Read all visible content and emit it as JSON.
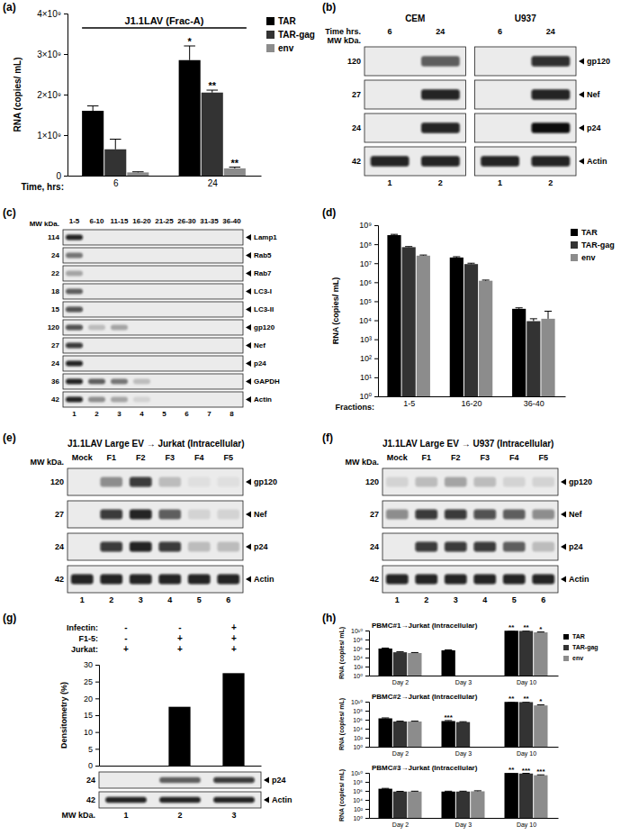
{
  "panel_labels": [
    "(a)",
    "(b)",
    "(c)",
    "(d)",
    "(e)",
    "(f)",
    "(g)",
    "(h)"
  ],
  "chart_data": [
    {
      "type": "bar",
      "title": "J1.1LAV (Frac-A)",
      "y_label": "RNA (copies/ mL)",
      "x_label": "Time, hrs:",
      "categories": [
        "6",
        "24"
      ],
      "series": [
        {
          "name": "TAR",
          "color": "#000000",
          "values": [
            1600000000,
            2850000000
          ],
          "errors": [
            120000000,
            350000000
          ]
        },
        {
          "name": "TAR-gag",
          "color": "#333333",
          "values": [
            650000000,
            2050000000
          ],
          "errors": [
            250000000,
            60000000
          ]
        },
        {
          "name": "env",
          "color": "#8c8c8c",
          "values": [
            80000000,
            180000000
          ],
          "errors": [
            15000000,
            30000000
          ]
        }
      ],
      "ylim": [
        0,
        4000000000
      ],
      "yticks": [
        0,
        {
          "value": 1000000000,
          "label": "1×10⁹"
        },
        {
          "value": 2000000000,
          "label": "2×10⁹"
        },
        {
          "value": 3000000000,
          "label": "3×10⁹"
        },
        {
          "value": 4000000000,
          "label": "4×10⁹"
        }
      ],
      "legend": "top-right",
      "annotations": [
        {
          "text": "*",
          "category": 1,
          "series": 0
        },
        {
          "text": "**",
          "category": 1,
          "series": 1
        },
        {
          "text": "**",
          "category": 1,
          "series": 2
        }
      ]
    },
    {
      "type": "bar",
      "log": "y",
      "y_label": "RNA (copies/ mL)",
      "x_label": "Fractions:",
      "categories": [
        "1-5",
        "16-20",
        "36-40"
      ],
      "series": [
        {
          "name": "TAR",
          "color": "#000000",
          "values": [
            300000000,
            20000000,
            40000
          ],
          "errors": [
            30000000,
            2000000,
            5000
          ]
        },
        {
          "name": "TAR-gag",
          "color": "#333333",
          "values": [
            70000000,
            9000000,
            9000
          ],
          "errors": [
            5000000,
            1000000,
            3000
          ]
        },
        {
          "name": "env",
          "color": "#8c8c8c",
          "values": [
            25000000,
            1200000,
            12000
          ],
          "errors": [
            2000000,
            100000,
            18000
          ]
        }
      ],
      "ylim": [
        1,
        1000000000
      ],
      "yticks": [
        {
          "value": 1,
          "label": "10⁰"
        },
        {
          "value": 10,
          "label": "10¹"
        },
        {
          "value": 100,
          "label": "10²"
        },
        {
          "value": 1000,
          "label": "10³"
        },
        {
          "value": 10000,
          "label": "10⁴"
        },
        {
          "value": 100000,
          "label": "10⁵"
        },
        {
          "value": 1000000,
          "label": "10⁶"
        },
        {
          "value": 10000000,
          "label": "10⁷"
        },
        {
          "value": 100000000,
          "label": "10⁸"
        },
        {
          "value": 1000000000,
          "label": "10⁹"
        }
      ],
      "legend": "top-right"
    },
    {
      "type": "bar",
      "y_label": "Densitometry (%)",
      "categories": [
        null,
        null,
        null
      ],
      "series": [
        {
          "color": "#000000",
          "values": [
            0,
            17.5,
            27.5
          ]
        }
      ],
      "ylim": [
        0,
        30
      ],
      "yticks": [
        0,
        5,
        10,
        15,
        20,
        25,
        30
      ]
    },
    {
      "type": "bar",
      "log": "y",
      "title": "PBMC#1→Jurkat (Intracellular)",
      "y_label": "RNA (copies/ mL)",
      "categories": [
        "Day 2",
        "Day 3",
        "Day 10"
      ],
      "series": [
        {
          "name": "TAR",
          "color": "#000000",
          "values": [
            1000000,
            400000,
            9000000000
          ],
          "errors": [
            300000,
            100000,
            1000000000
          ]
        },
        {
          "name": "TAR-gag",
          "color": "#333333",
          "values": [
            150000,
            null,
            8000000000
          ],
          "errors": [
            40000,
            null,
            900000000
          ]
        },
        {
          "name": "env",
          "color": "#8c8c8c",
          "values": [
            100000,
            null,
            4000000000
          ],
          "errors": [
            30000,
            null,
            800000000
          ]
        }
      ],
      "ylim": [
        1,
        10000000000
      ],
      "yticks": [
        {
          "value": 1,
          "label": "10⁰"
        },
        {
          "value": 100,
          "label": "10²"
        },
        {
          "value": 10000,
          "label": "10⁴"
        },
        {
          "value": 1000000,
          "label": "10⁶"
        },
        {
          "value": 100000000,
          "label": "10⁸"
        },
        {
          "value": 10000000000,
          "label": "10¹⁰"
        }
      ],
      "legend": "top-right",
      "annotations": [
        {
          "text": "**",
          "category": 2,
          "series": 0
        },
        {
          "text": "**",
          "category": 2,
          "series": 1
        },
        {
          "text": "*",
          "category": 2,
          "series": 2
        }
      ]
    },
    {
      "type": "bar",
      "log": "y",
      "title": "PBMC#2→Jurkat (Intracellular)",
      "y_label": "RNA (copies/ mL)",
      "categories": [
        "Day 2",
        "Day 3",
        "Day 10"
      ],
      "series": [
        {
          "color": "#000000",
          "values": [
            2000000,
            500000,
            9000000000
          ],
          "errors": [
            500000,
            150000,
            1000000000
          ]
        },
        {
          "color": "#333333",
          "values": [
            400000,
            300000,
            8000000000
          ],
          "errors": [
            80000,
            60000,
            900000000
          ]
        },
        {
          "color": "#8c8c8c",
          "values": [
            400000,
            null,
            1500000000
          ],
          "errors": [
            80000,
            null,
            500000000
          ]
        }
      ],
      "ylim": [
        1,
        10000000000
      ],
      "yticks": [
        {
          "value": 1,
          "label": "10⁰"
        },
        {
          "value": 100,
          "label": "10²"
        },
        {
          "value": 10000,
          "label": "10⁴"
        },
        {
          "value": 1000000,
          "label": "10⁶"
        },
        {
          "value": 100000000,
          "label": "10⁸"
        },
        {
          "value": 10000000000,
          "label": "10¹⁰"
        }
      ],
      "annotations": [
        {
          "text": "***",
          "category": 1,
          "series": 0
        },
        {
          "text": "**",
          "category": 2,
          "series": 0
        },
        {
          "text": "**",
          "category": 2,
          "series": 1
        },
        {
          "text": "*",
          "category": 2,
          "series": 2
        }
      ]
    },
    {
      "type": "bar",
      "log": "y",
      "title": "PBMC#3→Jurkat (Intracellular)",
      "y_label": "RNA (copies/ mL)",
      "categories": [
        "Day 2",
        "Day 3",
        "Day 10"
      ],
      "series": [
        {
          "color": "#000000",
          "values": [
            3000000,
            700000,
            9500000000
          ],
          "errors": [
            600000,
            150000,
            1000000000
          ]
        },
        {
          "color": "#333333",
          "values": [
            700000,
            700000,
            7000000000
          ],
          "errors": [
            100000,
            150000,
            800000000
          ]
        },
        {
          "color": "#8c8c8c",
          "values": [
            700000,
            800000,
            3000000000
          ],
          "errors": [
            150000,
            250000,
            600000000
          ]
        }
      ],
      "ylim": [
        1,
        10000000000
      ],
      "yticks": [
        {
          "value": 1,
          "label": "10⁰"
        },
        {
          "value": 100,
          "label": "10²"
        },
        {
          "value": 10000,
          "label": "10⁴"
        },
        {
          "value": 1000000,
          "label": "10⁶"
        },
        {
          "value": 100000000,
          "label": "10⁸"
        },
        {
          "value": 10000000000,
          "label": "10¹⁰"
        }
      ],
      "annotations": [
        {
          "text": "**",
          "category": 2,
          "series": 0
        },
        {
          "text": "***",
          "category": 2,
          "series": 1
        },
        {
          "text": "***",
          "category": 2,
          "series": 2
        }
      ]
    }
  ],
  "conditions": {
    "rows": [
      {
        "label": "Infectin:",
        "values": [
          "-",
          "-",
          "+"
        ]
      },
      {
        "label": "F1-5:",
        "values": [
          "-",
          "+",
          "+"
        ]
      },
      {
        "label": "Jurkat:",
        "values": [
          "+",
          "+",
          "+"
        ]
      }
    ]
  },
  "blots": [
    {
      "mw_label": "MW kDa.",
      "row_header": "Time hrs.",
      "groups": [
        {
          "label": "CEM",
          "columns": [
            "6",
            "24"
          ],
          "lane_numbers": [
            1,
            2
          ]
        },
        {
          "label": "U937",
          "columns": [
            "6",
            "24"
          ],
          "lane_numbers": [
            1,
            2
          ]
        }
      ],
      "rows": [
        {
          "mw": 120,
          "protein": "gp120",
          "bands": [
            0,
            0.6,
            0,
            0.85
          ]
        },
        {
          "mw": 27,
          "protein": "Nef",
          "bands": [
            0,
            0.9,
            0,
            0.9
          ]
        },
        {
          "mw": 24,
          "protein": "p24",
          "bands": [
            0,
            0.9,
            0,
            1
          ]
        },
        {
          "mw": 42,
          "protein": "Actin",
          "bands": [
            0.9,
            0.9,
            0.9,
            0.9
          ]
        }
      ]
    },
    {
      "mw_label": "MW kDa.",
      "groups": [
        {
          "columns": [
            "1-5",
            "6-10",
            "11-15",
            "16-20",
            "21-25",
            "26-30",
            "31-35",
            "36-40"
          ],
          "lane_numbers": [
            1,
            2,
            3,
            4,
            5,
            6,
            7,
            8
          ]
        }
      ],
      "rows": [
        {
          "mw": 114,
          "protein": "Lamp1",
          "bands": [
            0.9,
            0,
            0,
            0,
            0,
            0,
            0,
            0
          ]
        },
        {
          "mw": 24,
          "protein": "Rab5",
          "bands": [
            0.5,
            0,
            0,
            0,
            0,
            0,
            0,
            0
          ]
        },
        {
          "mw": 22,
          "protein": "Rab7",
          "bands": [
            0.3,
            0,
            0,
            0,
            0,
            0,
            0,
            0
          ]
        },
        {
          "mw": 18,
          "protein": "LC3-I",
          "bands": [
            0.6,
            0,
            0,
            0,
            0,
            0,
            0,
            0
          ]
        },
        {
          "mw": 15,
          "protein": "LC3-II",
          "bands": [
            0.7,
            0,
            0,
            0,
            0,
            0,
            0,
            0
          ]
        },
        {
          "mw": 120,
          "protein": "gp120",
          "bands": [
            0.7,
            0.2,
            0.3,
            0,
            0,
            0,
            0,
            0
          ]
        },
        {
          "mw": 27,
          "protein": "Nef",
          "bands": [
            0.8,
            0,
            0,
            0,
            0,
            0,
            0,
            0
          ]
        },
        {
          "mw": 24,
          "protein": "p24",
          "bands": [
            0.9,
            0,
            0,
            0,
            0,
            0,
            0,
            0
          ]
        },
        {
          "mw": 36,
          "protein": "GAPDH",
          "bands": [
            0.9,
            0.6,
            0.5,
            0.2,
            0,
            0,
            0,
            0
          ]
        },
        {
          "mw": 42,
          "protein": "Actin",
          "bands": [
            0.9,
            0.4,
            0.3,
            0.1,
            0,
            0,
            0,
            0
          ]
        }
      ]
    },
    {
      "title": "J1.1LAV Large EV → Jurkat (Intracellular)",
      "mw_label": "MW kDa.",
      "groups": [
        {
          "columns": [
            "Mock",
            "F1",
            "F2",
            "F3",
            "F4",
            "F5"
          ],
          "lane_numbers": [
            1,
            2,
            3,
            4,
            5,
            6
          ]
        }
      ],
      "rows": [
        {
          "mw": 120,
          "protein": "gp120",
          "bands": [
            0,
            0.4,
            0.8,
            0.2,
            0.05,
            0.05
          ]
        },
        {
          "mw": 27,
          "protein": "Nef",
          "bands": [
            0,
            0.8,
            0.9,
            0.6,
            0.1,
            0.1
          ]
        },
        {
          "mw": 24,
          "protein": "p24",
          "bands": [
            0,
            0.8,
            0.9,
            0.8,
            0.2,
            0.2
          ]
        },
        {
          "mw": 42,
          "protein": "Actin",
          "bands": [
            0.9,
            0.9,
            0.9,
            0.9,
            0.9,
            0.9
          ]
        }
      ]
    },
    {
      "title": "J1.1LAV Large EV → U937 (Intracellular)",
      "mw_label": "MW kDa.",
      "groups": [
        {
          "columns": [
            "Mock",
            "F1",
            "F2",
            "F3",
            "F4",
            "F5"
          ],
          "lane_numbers": [
            1,
            2,
            3,
            4,
            5,
            6
          ]
        }
      ],
      "rows": [
        {
          "mw": 120,
          "protein": "gp120",
          "bands": [
            0.1,
            0.2,
            0.3,
            0.2,
            0.1,
            0.1
          ]
        },
        {
          "mw": 27,
          "protein": "Nef",
          "bands": [
            0.4,
            0.8,
            0.8,
            0.7,
            0.6,
            0.4
          ]
        },
        {
          "mw": 24,
          "protein": "p24",
          "bands": [
            0,
            0.8,
            0.8,
            0.8,
            0.6,
            0.2
          ]
        },
        {
          "mw": 42,
          "protein": "Actin",
          "bands": [
            0.9,
            0.9,
            0.9,
            0.9,
            0.9,
            0.9
          ]
        }
      ]
    },
    {
      "mw_label": "MW kDa.",
      "groups": [
        {
          "lane_numbers": [
            1,
            2,
            3
          ]
        }
      ],
      "rows": [
        {
          "mw": 24,
          "protein": "p24",
          "bands": [
            0,
            0.6,
            0.8
          ]
        },
        {
          "mw": 42,
          "protein": "Actin",
          "bands": [
            0.9,
            0.9,
            0.9
          ]
        }
      ]
    }
  ]
}
